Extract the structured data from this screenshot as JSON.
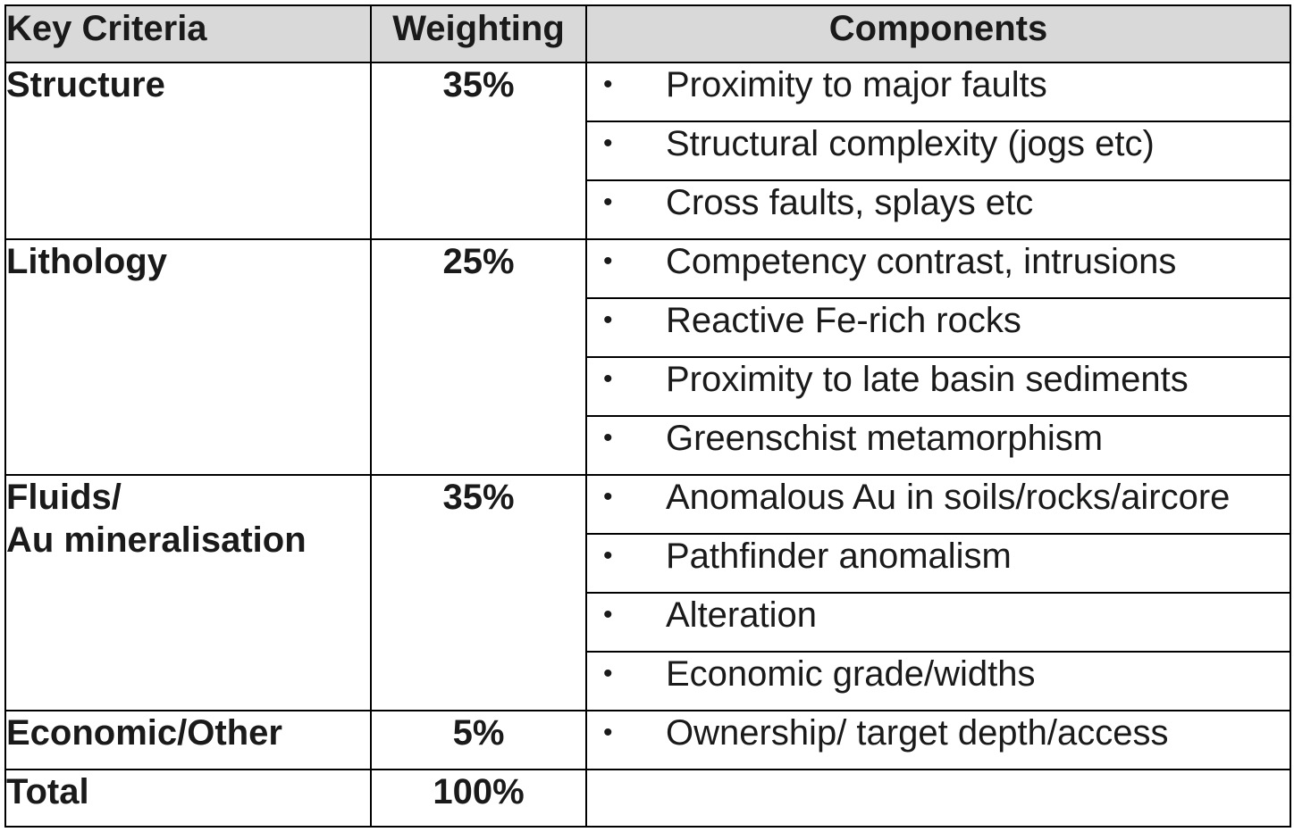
{
  "headers": {
    "criteria": "Key Criteria",
    "weighting": "Weighting",
    "components": "Components"
  },
  "bullet_glyph": "•",
  "groups": [
    {
      "criteria": "Structure",
      "weighting": "35%",
      "components": [
        "Proximity to major faults",
        "Structural complexity (jogs etc)",
        "Cross faults, splays etc"
      ]
    },
    {
      "criteria": "Lithology",
      "weighting": "25%",
      "components": [
        "Competency contrast, intrusions",
        "Reactive Fe-rich rocks",
        "Proximity to late basin sediments",
        "Greenschist metamorphism"
      ]
    },
    {
      "criteria_lines": [
        "Fluids/",
        "Au mineralisation"
      ],
      "weighting": "35%",
      "components": [
        "Anomalous Au in soils/rocks/aircore",
        "Pathfinder anomalism",
        "Alteration",
        "Economic grade/widths"
      ]
    },
    {
      "criteria": "Economic/Other",
      "weighting": "5%",
      "components": [
        "Ownership/ target depth/access"
      ]
    }
  ],
  "total": {
    "label": "Total",
    "weighting": "100%"
  }
}
